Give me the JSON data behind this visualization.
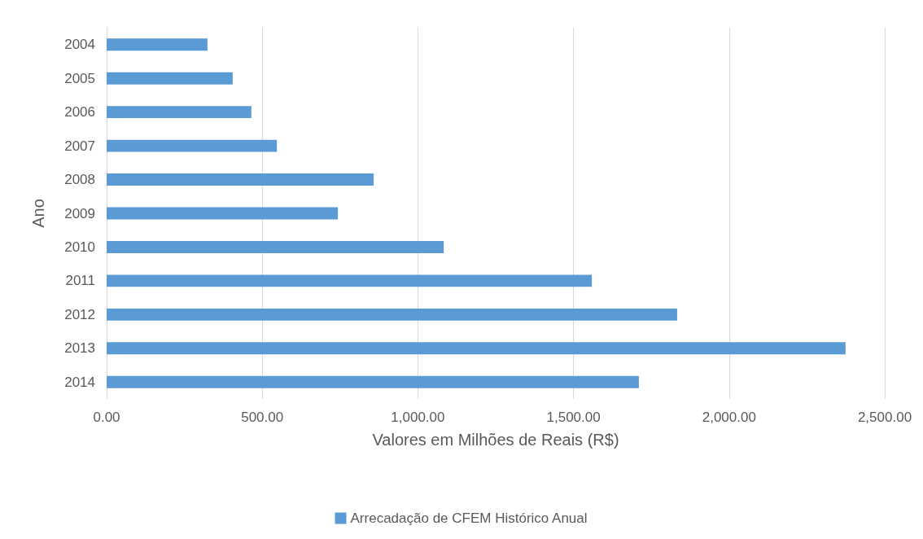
{
  "chart_data": {
    "type": "bar",
    "orientation": "horizontal",
    "xlabel": "Valores em Milhões de Reais (R$)",
    "ylabel": "Ano",
    "categories": [
      "2004",
      "2005",
      "2006",
      "2007",
      "2008",
      "2009",
      "2010",
      "2011",
      "2012",
      "2013",
      "2014"
    ],
    "series": [
      {
        "name": "Arrecadação de CFEM Histórico Anual",
        "color": "#5b9bd5",
        "values": [
          324,
          405,
          465,
          547,
          858,
          743,
          1083,
          1559,
          1833,
          2374,
          1710
        ]
      }
    ],
    "xlim": [
      0,
      2500
    ],
    "xticks": [
      {
        "value": 0,
        "label": "0.00"
      },
      {
        "value": 500,
        "label": "500.00"
      },
      {
        "value": 1000,
        "label": "1,000.00"
      },
      {
        "value": 1500,
        "label": "1,500.00"
      },
      {
        "value": 2000,
        "label": "2,000.00"
      },
      {
        "value": 2500,
        "label": "2,500.00"
      }
    ],
    "grid": "x",
    "legend": "bottom"
  }
}
